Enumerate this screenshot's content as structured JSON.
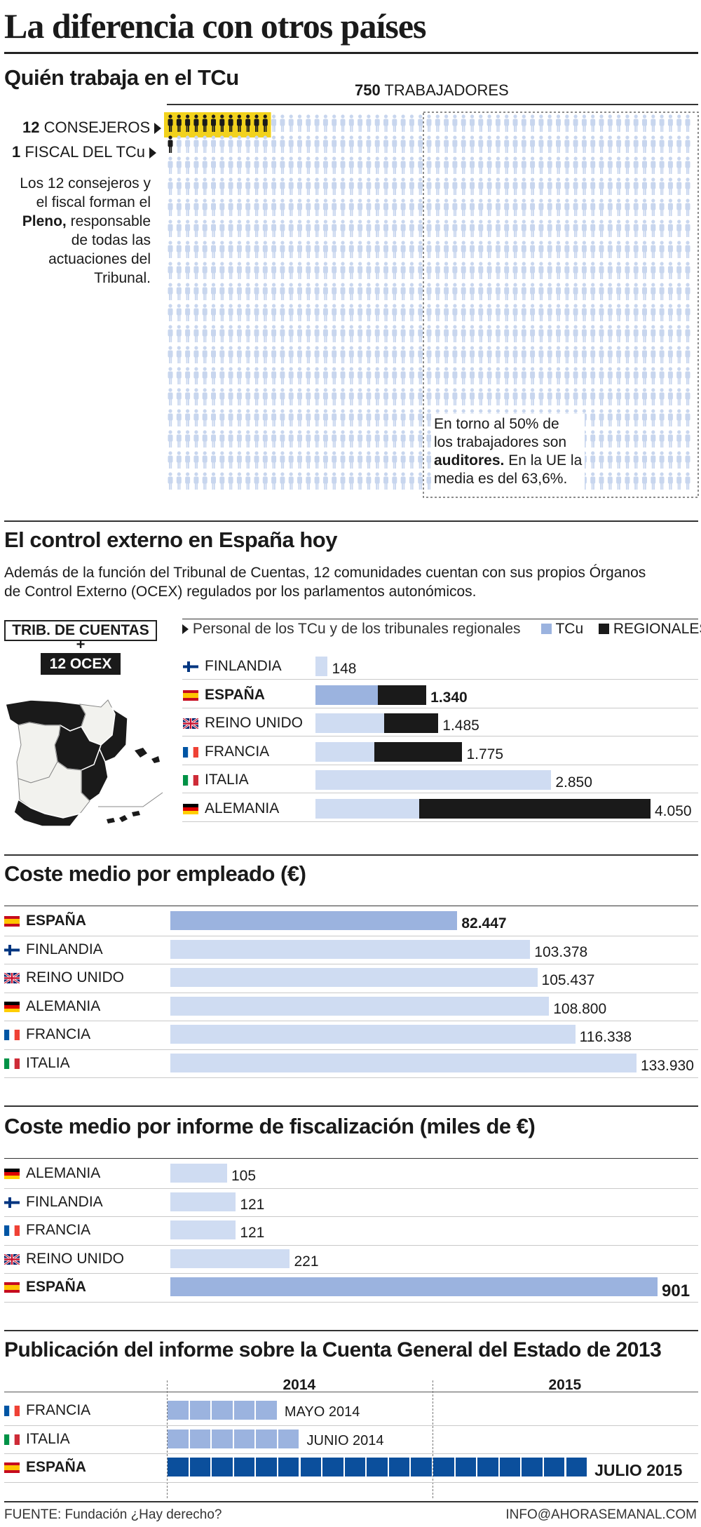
{
  "title": "La diferencia con otros países",
  "s1": {
    "title": "Quién trabaja en el TCu",
    "total_num": "750",
    "total_label": " TRABAJADORES",
    "consejeros_num": "12",
    "consejeros_label": " CONSEJEROS",
    "fiscal_num": "1",
    "fiscal_label": " FISCAL DEL TCu",
    "pleno_1": "Los 12 consejeros y",
    "pleno_2": "el fiscal forman el",
    "pleno_3a": "Pleno,",
    "pleno_3b": " responsable",
    "pleno_4": "de todas las",
    "pleno_5": "actuaciones del",
    "pleno_6": "Tribunal.",
    "aud_1": "En torno al 50% de",
    "aud_2": "los trabajadores son",
    "aud_3a": "auditores.",
    "aud_3b": " En la UE la",
    "aud_4": "media es del 63,6%.",
    "colors": {
      "highlight": "#f2d21c",
      "person": "#c8d6ee",
      "dark": "#1a1a1a"
    }
  },
  "s2": {
    "title": "El control externo en España hoy",
    "intro_1": "Además de la función del Tribunal de Cuentas, 12 comunidades cuentan con sus propios Órganos",
    "intro_2": "de Control Externo (OCEX) regulados por los parlamentos autonómicos.",
    "box1": "TRIB. DE CUENTAS",
    "plus": "+",
    "box2": "12 OCEX",
    "map_icon": "spain-regions-map-icon"
  },
  "chart_data": [
    {
      "type": "bar",
      "stacked": true,
      "title": "Personal de los TCu y de los tribunales regionales",
      "legend": [
        {
          "name": "TCu",
          "color": "#9bb3df"
        },
        {
          "name": "REGIONALES",
          "color": "#1a1a1a"
        }
      ],
      "rows": [
        {
          "country": "FINLANDIA",
          "flag": "finland-flag-icon",
          "label": "148",
          "total": 148,
          "tcu": 148,
          "regionales": 0,
          "highlight": false
        },
        {
          "country": "ESPAÑA",
          "flag": "spain-flag-icon",
          "label": "1.340",
          "total": 1340,
          "tcu": 750,
          "regionales": 590,
          "highlight": true
        },
        {
          "country": "REINO UNIDO",
          "flag": "uk-flag-icon",
          "label": "1.485",
          "total": 1485,
          "tcu": 830,
          "regionales": 655,
          "highlight": false
        },
        {
          "country": "FRANCIA",
          "flag": "france-flag-icon",
          "label": "1.775",
          "total": 1775,
          "tcu": 710,
          "regionales": 1065,
          "highlight": false
        },
        {
          "country": "ITALIA",
          "flag": "italy-flag-icon",
          "label": "2.850",
          "total": 2850,
          "tcu": 2850,
          "regionales": 0,
          "highlight": false
        },
        {
          "country": "ALEMANIA",
          "flag": "germany-flag-icon",
          "label": "4.050",
          "total": 4050,
          "tcu": 1250,
          "regionales": 2800,
          "highlight": false
        }
      ],
      "xlim": [
        0,
        4050
      ]
    },
    {
      "type": "bar",
      "title": "Coste medio por empleado (€)",
      "rows": [
        {
          "country": "ESPAÑA",
          "flag": "spain-flag-icon",
          "label": "82.447",
          "value": 82447,
          "highlight": true
        },
        {
          "country": "FINLANDIA",
          "flag": "finland-flag-icon",
          "label": "103.378",
          "value": 103378,
          "highlight": false
        },
        {
          "country": "REINO UNIDO",
          "flag": "uk-flag-icon",
          "label": "105.437",
          "value": 105437,
          "highlight": false
        },
        {
          "country": "ALEMANIA",
          "flag": "germany-flag-icon",
          "label": "108.800",
          "value": 108800,
          "highlight": false
        },
        {
          "country": "FRANCIA",
          "flag": "france-flag-icon",
          "label": "116.338",
          "value": 116338,
          "highlight": false
        },
        {
          "country": "ITALIA",
          "flag": "italy-flag-icon",
          "label": "133.930",
          "value": 133930,
          "highlight": false
        }
      ],
      "xlim": [
        0,
        133930
      ]
    },
    {
      "type": "bar",
      "title": "Coste medio por informe de fiscalización (miles de €)",
      "rows": [
        {
          "country": "ALEMANIA",
          "flag": "germany-flag-icon",
          "label": "105",
          "value": 105,
          "highlight": false
        },
        {
          "country": "FINLANDIA",
          "flag": "finland-flag-icon",
          "label": "121",
          "value": 121,
          "highlight": false
        },
        {
          "country": "FRANCIA",
          "flag": "france-flag-icon",
          "label": "121",
          "value": 121,
          "highlight": false
        },
        {
          "country": "REINO UNIDO",
          "flag": "uk-flag-icon",
          "label": "221",
          "value": 221,
          "highlight": false
        },
        {
          "country": "ESPAÑA",
          "flag": "spain-flag-icon",
          "label": "901",
          "value": 901,
          "highlight": true
        }
      ],
      "xlim": [
        0,
        901
      ]
    },
    {
      "type": "bar",
      "title": "Publicación del informe sobre la Cuenta General del Estado de 2013",
      "x_periods": [
        "2014",
        "2015"
      ],
      "rows": [
        {
          "country": "FRANCIA",
          "flag": "france-flag-icon",
          "label": "MAYO 2014",
          "months": 5,
          "highlight": false
        },
        {
          "country": "ITALIA",
          "flag": "italy-flag-icon",
          "label": "JUNIO 2014",
          "months": 6,
          "highlight": false
        },
        {
          "country": "ESPAÑA",
          "flag": "spain-flag-icon",
          "label": "JULIO 2015",
          "months": 19,
          "highlight": true
        }
      ],
      "xlim": [
        0,
        24
      ]
    }
  ],
  "s3": {
    "title": "Coste medio por empleado (€)"
  },
  "s4": {
    "title": "Coste medio por informe de fiscalización (miles de €)"
  },
  "s5": {
    "title": "Publicación del informe sobre la Cuenta General del Estado de 2013"
  },
  "colors": {
    "light": "#cfdcf2",
    "mid": "#9bb3df",
    "dark": "#1a1a1a",
    "navy": "#0b4f9c"
  },
  "footer": {
    "source": "FUENTE:  Fundación ¿Hay derecho?",
    "email": "INFO@AHORASEMANAL.COM"
  }
}
